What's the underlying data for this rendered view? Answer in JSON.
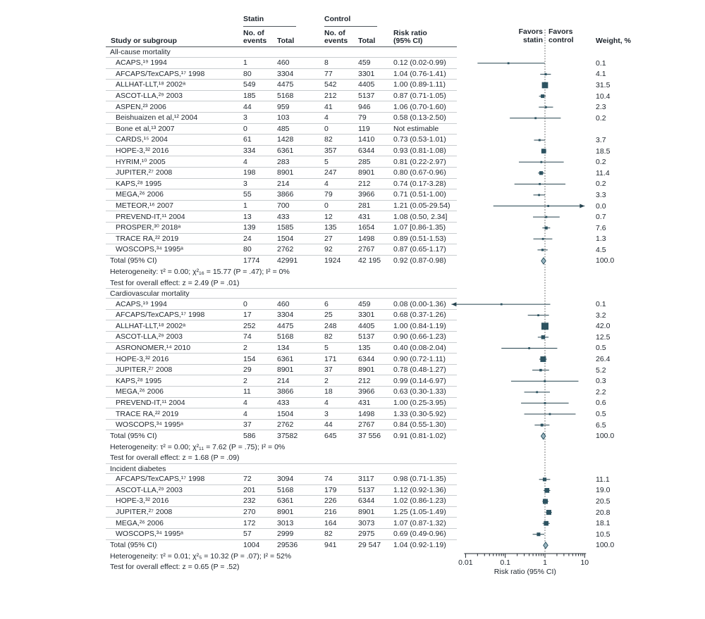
{
  "figure": {
    "header": {
      "study": "Study or subgroup",
      "statin_group": "Statin",
      "control_group": "Control",
      "events_l1": "No. of",
      "events_l2": "events",
      "total": "Total",
      "rr_l1": "Risk ratio",
      "rr_l2": "(95% CI)",
      "weight": "Weight, %"
    },
    "favors": {
      "left_l1": "Favors",
      "left_l2": "statin",
      "right_l1": "Favors",
      "right_l2": "control"
    },
    "colors": {
      "marker": "#2d5361",
      "ci_line": "#24424e",
      "diamond_fill": "#9db8c3",
      "null_line": "#555555",
      "axis": "#1d242c",
      "rule_dark": "#50565c",
      "rule_light": "#c9cdd0",
      "text": "#1d242c"
    }
  },
  "chart_data": {
    "type": "scatter",
    "variant": "forest-plot",
    "x_scale": "log10",
    "x_range": [
      0.01,
      10
    ],
    "x_ticks": [
      "0.01",
      "0.1",
      "1",
      "10"
    ],
    "x_label": "Risk ratio (95% CI)",
    "null_line": 1,
    "sections": [
      {
        "label": "All-cause mortality",
        "rows": [
          {
            "study": "ACAPS,¹⁹ 1994",
            "statin_events": "1",
            "statin_total": "460",
            "control_events": "8",
            "control_total": "459",
            "rr_text": "0.12 (0.02-0.99)",
            "weight": "0.1",
            "est": 0.12,
            "lo": 0.02,
            "hi": 0.99
          },
          {
            "study": "AFCAPS/TexCAPS,¹⁷ 1998",
            "statin_events": "80",
            "statin_total": "3304",
            "control_events": "77",
            "control_total": "3301",
            "rr_text": "1.04 (0.76-1.41)",
            "weight": "4.1",
            "est": 1.04,
            "lo": 0.76,
            "hi": 1.41
          },
          {
            "study": "ALLHAT-LLT,¹⁸ 2002ᵃ",
            "statin_events": "549",
            "statin_total": "4475",
            "control_events": "542",
            "control_total": "4405",
            "rr_text": "1.00 (0.89-1.11)",
            "weight": "31.5",
            "est": 1.0,
            "lo": 0.89,
            "hi": 1.11
          },
          {
            "study": "ASCOT-LLA,²⁹ 2003",
            "statin_events": "185",
            "statin_total": "5168",
            "control_events": "212",
            "control_total": "5137",
            "rr_text": "0.87 (0.71-1.05)",
            "weight": "10.4",
            "est": 0.87,
            "lo": 0.71,
            "hi": 1.05
          },
          {
            "study": "ASPEN,²³ 2006",
            "statin_events": "44",
            "statin_total": "959",
            "control_events": "41",
            "control_total": "946",
            "rr_text": "1.06 (0.70-1.60)",
            "weight": "2.3",
            "est": 1.06,
            "lo": 0.7,
            "hi": 1.6
          },
          {
            "study": "Beishuaizen et al,¹² 2004",
            "statin_events": "3",
            "statin_total": "103",
            "control_events": "4",
            "control_total": "79",
            "rr_text": "0.58 (0.13-2.50)",
            "weight": "0.2",
            "est": 0.58,
            "lo": 0.13,
            "hi": 2.5
          },
          {
            "study": "Bone et al,¹³ 2007",
            "statin_events": "0",
            "statin_total": "485",
            "control_events": "0",
            "control_total": "119",
            "rr_text": "Not estimable",
            "weight": "",
            "not_estimable": true
          },
          {
            "study": "CARDS,¹⁵ 2004",
            "statin_events": "61",
            "statin_total": "1428",
            "control_events": "82",
            "control_total": "1410",
            "rr_text": "0.73 (0.53-1.01)",
            "weight": "3.7",
            "est": 0.73,
            "lo": 0.53,
            "hi": 1.01
          },
          {
            "study": "HOPE-3,³² 2016",
            "statin_events": "334",
            "statin_total": "6361",
            "control_events": "357",
            "control_total": "6344",
            "rr_text": "0.93 (0.81-1.08)",
            "weight": "18.5",
            "est": 0.93,
            "lo": 0.81,
            "hi": 1.08
          },
          {
            "study": "HYRIM,¹⁰ 2005",
            "statin_events": "4",
            "statin_total": "283",
            "control_events": "5",
            "control_total": "285",
            "rr_text": "0.81 (0.22-2.97)",
            "weight": "0.2",
            "est": 0.81,
            "lo": 0.22,
            "hi": 2.97
          },
          {
            "study": "JUPITER,²⁷ 2008",
            "statin_events": "198",
            "statin_total": "8901",
            "control_events": "247",
            "control_total": "8901",
            "rr_text": "0.80 (0.67-0.96)",
            "weight": "11.4",
            "est": 0.8,
            "lo": 0.67,
            "hi": 0.96
          },
          {
            "study": "KAPS,²⁸ 1995",
            "statin_events": "3",
            "statin_total": "214",
            "control_events": "4",
            "control_total": "212",
            "rr_text": "0.74 (0.17-3.28)",
            "weight": "0.2",
            "est": 0.74,
            "lo": 0.17,
            "hi": 3.28
          },
          {
            "study": "MEGA,²⁶ 2006",
            "statin_events": "55",
            "statin_total": "3866",
            "control_events": "79",
            "control_total": "3966",
            "rr_text": "0.71 (0.51-1.00)",
            "weight": "3.3",
            "est": 0.71,
            "lo": 0.51,
            "hi": 1.0
          },
          {
            "study": "METEOR,¹⁶ 2007",
            "statin_events": "1",
            "statin_total": "700",
            "control_events": "0",
            "control_total": "281",
            "rr_text": "1.21 (0.05-29.54)",
            "weight": "0.0",
            "est": 1.21,
            "lo": 0.05,
            "hi": 29.54
          },
          {
            "study": "PREVEND-IT,¹¹ 2004",
            "statin_events": "13",
            "statin_total": "433",
            "control_events": "12",
            "control_total": "431",
            "rr_text": "1.08 (0.50, 2.34]",
            "weight": "0.7",
            "est": 1.08,
            "lo": 0.5,
            "hi": 2.34
          },
          {
            "study": "PROSPER,³⁰ 2018ᵃ",
            "statin_events": "139",
            "statin_total": "1585",
            "control_events": "135",
            "control_total": "1654",
            "rr_text": "1.07 [0.86-1.35)",
            "weight": "7.6",
            "est": 1.07,
            "lo": 0.86,
            "hi": 1.35
          },
          {
            "study": "TRACE RA,²² 2019",
            "statin_events": "24",
            "statin_total": "1504",
            "control_events": "27",
            "control_total": "1498",
            "rr_text": "0.89 (0.51-1.53)",
            "weight": "1.3",
            "est": 0.89,
            "lo": 0.51,
            "hi": 1.53
          },
          {
            "study": "WOSCOPS,³⁴ 1995ᵃ",
            "statin_events": "80",
            "statin_total": "2762",
            "control_events": "92",
            "control_total": "2767",
            "rr_text": "0.87 (0.65-1.17)",
            "weight": "4.5",
            "est": 0.87,
            "lo": 0.65,
            "hi": 1.17
          }
        ],
        "total": {
          "label": "Total (95% CI)",
          "statin_events": "1774",
          "statin_total": "42991",
          "control_events": "1924",
          "control_total": "42 195",
          "rr_text": "0.92 (0.87-0.98)",
          "weight": "100.0",
          "est": 0.92,
          "lo": 0.87,
          "hi": 0.98
        },
        "heterogeneity": "Heterogeneity: τ² = 0.00; χ²₁₆ = 15.77 (P = .47); I² = 0%",
        "overall_test": "Test for overall effect: z = 2.49 (P = .01)"
      },
      {
        "label": "Cardiovascular mortality",
        "rows": [
          {
            "study": "ACAPS,¹⁹ 1994",
            "statin_events": "0",
            "statin_total": "460",
            "control_events": "6",
            "control_total": "459",
            "rr_text": "0.08 (0.00-1.36)",
            "weight": "0.1",
            "est": 0.08,
            "lo": 0.0,
            "hi": 1.36
          },
          {
            "study": "AFCAPS/TexCAPS,¹⁷ 1998",
            "statin_events": "17",
            "statin_total": "3304",
            "control_events": "25",
            "control_total": "3301",
            "rr_text": "0.68 (0.37-1.26)",
            "weight": "3.2",
            "est": 0.68,
            "lo": 0.37,
            "hi": 1.26
          },
          {
            "study": "ALLHAT-LLT,¹⁸ 2002ᵃ",
            "statin_events": "252",
            "statin_total": "4475",
            "control_events": "248",
            "control_total": "4405",
            "rr_text": "1.00 (0.84-1.19)",
            "weight": "42.0",
            "est": 1.0,
            "lo": 0.84,
            "hi": 1.19
          },
          {
            "study": "ASCOT-LLA,²⁹ 2003",
            "statin_events": "74",
            "statin_total": "5168",
            "control_events": "82",
            "control_total": "5137",
            "rr_text": "0.90 (0.66-1.23)",
            "weight": "12.5",
            "est": 0.9,
            "lo": 0.66,
            "hi": 1.23
          },
          {
            "study": "ASRONOMER,¹⁴ 2010",
            "statin_events": "2",
            "statin_total": "134",
            "control_events": "5",
            "control_total": "135",
            "rr_text": "0.40 (0.08-2.04)",
            "weight": "0.5",
            "est": 0.4,
            "lo": 0.08,
            "hi": 2.04
          },
          {
            "study": "HOPE-3,³² 2016",
            "statin_events": "154",
            "statin_total": "6361",
            "control_events": "171",
            "control_total": "6344",
            "rr_text": "0.90 (0.72-1.11)",
            "weight": "26.4",
            "est": 0.9,
            "lo": 0.72,
            "hi": 1.11
          },
          {
            "study": "JUPITER,²⁷ 2008",
            "statin_events": "29",
            "statin_total": "8901",
            "control_events": "37",
            "control_total": "8901",
            "rr_text": "0.78 (0.48-1.27)",
            "weight": "5.2",
            "est": 0.78,
            "lo": 0.48,
            "hi": 1.27
          },
          {
            "study": "KAPS,²⁸ 1995",
            "statin_events": "2",
            "statin_total": "214",
            "control_events": "2",
            "control_total": "212",
            "rr_text": "0.99 (0.14-6.97)",
            "weight": "0.3",
            "est": 0.99,
            "lo": 0.14,
            "hi": 6.97
          },
          {
            "study": "MEGA,²⁶ 2006",
            "statin_events": "11",
            "statin_total": "3866",
            "control_events": "18",
            "control_total": "3966",
            "rr_text": "0.63 (0.30-1.33)",
            "weight": "2.2",
            "est": 0.63,
            "lo": 0.3,
            "hi": 1.33
          },
          {
            "study": "PREVEND-IT,¹¹ 2004",
            "statin_events": "4",
            "statin_total": "433",
            "control_events": "4",
            "control_total": "431",
            "rr_text": "1.00 (0.25-3.95)",
            "weight": "0.6",
            "est": 1.0,
            "lo": 0.25,
            "hi": 3.95
          },
          {
            "study": "TRACE RA,²² 2019",
            "statin_events": "4",
            "statin_total": "1504",
            "control_events": "3",
            "control_total": "1498",
            "rr_text": "1.33 (0.30-5.92)",
            "weight": "0.5",
            "est": 1.33,
            "lo": 0.3,
            "hi": 5.92
          },
          {
            "study": "WOSCOPS,³⁴ 1995ᵃ",
            "statin_events": "37",
            "statin_total": "2762",
            "control_events": "44",
            "control_total": "2767",
            "rr_text": "0.84 (0.55-1.30)",
            "weight": "6.5",
            "est": 0.84,
            "lo": 0.55,
            "hi": 1.3
          }
        ],
        "total": {
          "label": "Total (95% CI)",
          "statin_events": "586",
          "statin_total": "37582",
          "control_events": "645",
          "control_total": "37 556",
          "rr_text": "0.91 (0.81-1.02)",
          "weight": "100.0",
          "est": 0.91,
          "lo": 0.81,
          "hi": 1.02
        },
        "heterogeneity": "Heterogeneity: τ² = 0.00; χ²₁₁ = 7.62 (P = .75); I² = 0%",
        "overall_test": "Test for overall effect: z = 1.68 (P = .09)"
      },
      {
        "label": "Incident diabetes",
        "rows": [
          {
            "study": "AFCAPS/TexCAPS,¹⁷ 1998",
            "statin_events": "72",
            "statin_total": "3094",
            "control_events": "74",
            "control_total": "3117",
            "rr_text": "0.98 (0.71-1.35)",
            "weight": "11.1",
            "est": 0.98,
            "lo": 0.71,
            "hi": 1.35
          },
          {
            "study": "ASCOT-LLA,²⁹ 2003",
            "statin_events": "201",
            "statin_total": "5168",
            "control_events": "179",
            "control_total": "5137",
            "rr_text": "1.12 (0.92-1.36)",
            "weight": "19.0",
            "est": 1.12,
            "lo": 0.92,
            "hi": 1.36
          },
          {
            "study": "HOPE-3,³² 2016",
            "statin_events": "232",
            "statin_total": "6361",
            "control_events": "226",
            "control_total": "6344",
            "rr_text": "1.02 (0.86-1.23)",
            "weight": "20.5",
            "est": 1.02,
            "lo": 0.86,
            "hi": 1.23
          },
          {
            "study": "JUPITER,²⁷ 2008",
            "statin_events": "270",
            "statin_total": "8901",
            "control_events": "216",
            "control_total": "8901",
            "rr_text": "1.25 (1.05-1.49)",
            "weight": "20.8",
            "est": 1.25,
            "lo": 1.05,
            "hi": 1.49
          },
          {
            "study": "MEGA,²⁶ 2006",
            "statin_events": "172",
            "statin_total": "3013",
            "control_events": "164",
            "control_total": "3073",
            "rr_text": "1.07 (0.87-1.32)",
            "weight": "18.1",
            "est": 1.07,
            "lo": 0.87,
            "hi": 1.32
          },
          {
            "study": "WOSCOPS,³⁴ 1995ᵃ",
            "statin_events": "57",
            "statin_total": "2999",
            "control_events": "82",
            "control_total": "2975",
            "rr_text": "0.69 (0.49-0.96)",
            "weight": "10.5",
            "est": 0.69,
            "lo": 0.49,
            "hi": 0.96
          }
        ],
        "total": {
          "label": "Total (95% CI)",
          "statin_events": "1004",
          "statin_total": "29536",
          "control_events": "941",
          "control_total": "29 547",
          "rr_text": "1.04 (0.92-1.19)",
          "weight": "100.0",
          "est": 1.04,
          "lo": 0.92,
          "hi": 1.19
        },
        "heterogeneity": "Heterogeneity: τ² = 0.01; χ²₅ = 10.32 (P = .07); I² = 52%",
        "overall_test": "Test for overall effect: z = 0.65 (P = .52)"
      }
    ]
  }
}
